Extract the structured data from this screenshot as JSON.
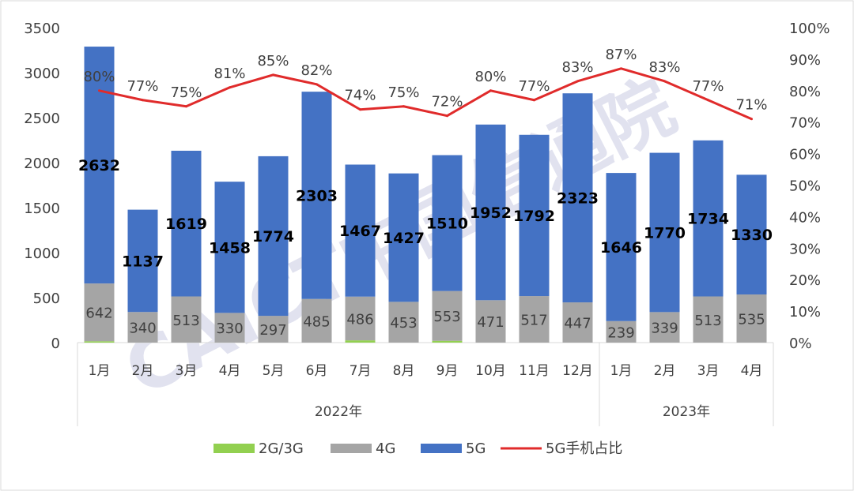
{
  "chart_data": {
    "type": "bar",
    "stacked": true,
    "categories": [
      "1月",
      "2月",
      "3月",
      "4月",
      "5月",
      "6月",
      "7月",
      "8月",
      "9月",
      "10月",
      "11月",
      "12月",
      "1月",
      "2月",
      "3月",
      "4月"
    ],
    "groups": [
      {
        "label": "2022年",
        "count": 12
      },
      {
        "label": "2023年",
        "count": 4
      }
    ],
    "series": [
      {
        "name": "2G/3G",
        "type": "bar",
        "color": "#92d050",
        "values": [
          15,
          0,
          0,
          0,
          0,
          0,
          25,
          0,
          20,
          0,
          0,
          0,
          0,
          0,
          0,
          0
        ]
      },
      {
        "name": "4G",
        "type": "bar",
        "color": "#a5a5a5",
        "values": [
          642,
          340,
          513,
          330,
          297,
          485,
          486,
          453,
          553,
          471,
          517,
          447,
          239,
          339,
          513,
          535
        ]
      },
      {
        "name": "5G",
        "type": "bar",
        "color": "#4472c4",
        "values": [
          2632,
          1137,
          1619,
          1458,
          1774,
          2303,
          1467,
          1427,
          1510,
          1952,
          1792,
          2323,
          1646,
          1770,
          1734,
          1330
        ]
      },
      {
        "name": "5G手机占比",
        "type": "line",
        "axis": "right",
        "color": "#e02b2b",
        "values": [
          80,
          77,
          75,
          81,
          85,
          82,
          74,
          75,
          72,
          80,
          77,
          83,
          87,
          83,
          77,
          71
        ]
      }
    ],
    "labels_4g": [
      "642",
      "340",
      "513",
      "330",
      "297",
      "485",
      "486",
      "453",
      "553",
      "471",
      "517",
      "447",
      "239",
      "339",
      "513",
      "535"
    ],
    "labels_5g": [
      "2632",
      "1137",
      "1619",
      "1458",
      "1774",
      "2303",
      "1467",
      "1427",
      "1510",
      "1952",
      "1792",
      "2323",
      "1646",
      "1770",
      "1734",
      "1330"
    ],
    "labels_pct": [
      "80%",
      "77%",
      "75%",
      "81%",
      "85%",
      "82%",
      "74%",
      "75%",
      "72%",
      "80%",
      "77%",
      "83%",
      "87%",
      "83%",
      "77%",
      "71%"
    ],
    "left_axis": {
      "min": 0,
      "max": 3500,
      "step": 500,
      "ticks": [
        "0",
        "500",
        "1000",
        "1500",
        "2000",
        "2500",
        "3000",
        "3500"
      ]
    },
    "right_axis": {
      "min": 0,
      "max": 100,
      "step": 10,
      "ticks": [
        "0%",
        "10%",
        "20%",
        "30%",
        "40%",
        "50%",
        "60%",
        "70%",
        "80%",
        "90%",
        "100%"
      ]
    },
    "grid": false,
    "legend_position": "bottom",
    "legend": [
      {
        "label": "2G/3G",
        "kind": "box",
        "color": "#92d050"
      },
      {
        "label": "4G",
        "kind": "box",
        "color": "#a5a5a5"
      },
      {
        "label": "5G",
        "kind": "box",
        "color": "#4472c4"
      },
      {
        "label": "5G手机占比",
        "kind": "line",
        "color": "#e02b2b"
      }
    ],
    "watermark": "CAICT中国信通院"
  }
}
